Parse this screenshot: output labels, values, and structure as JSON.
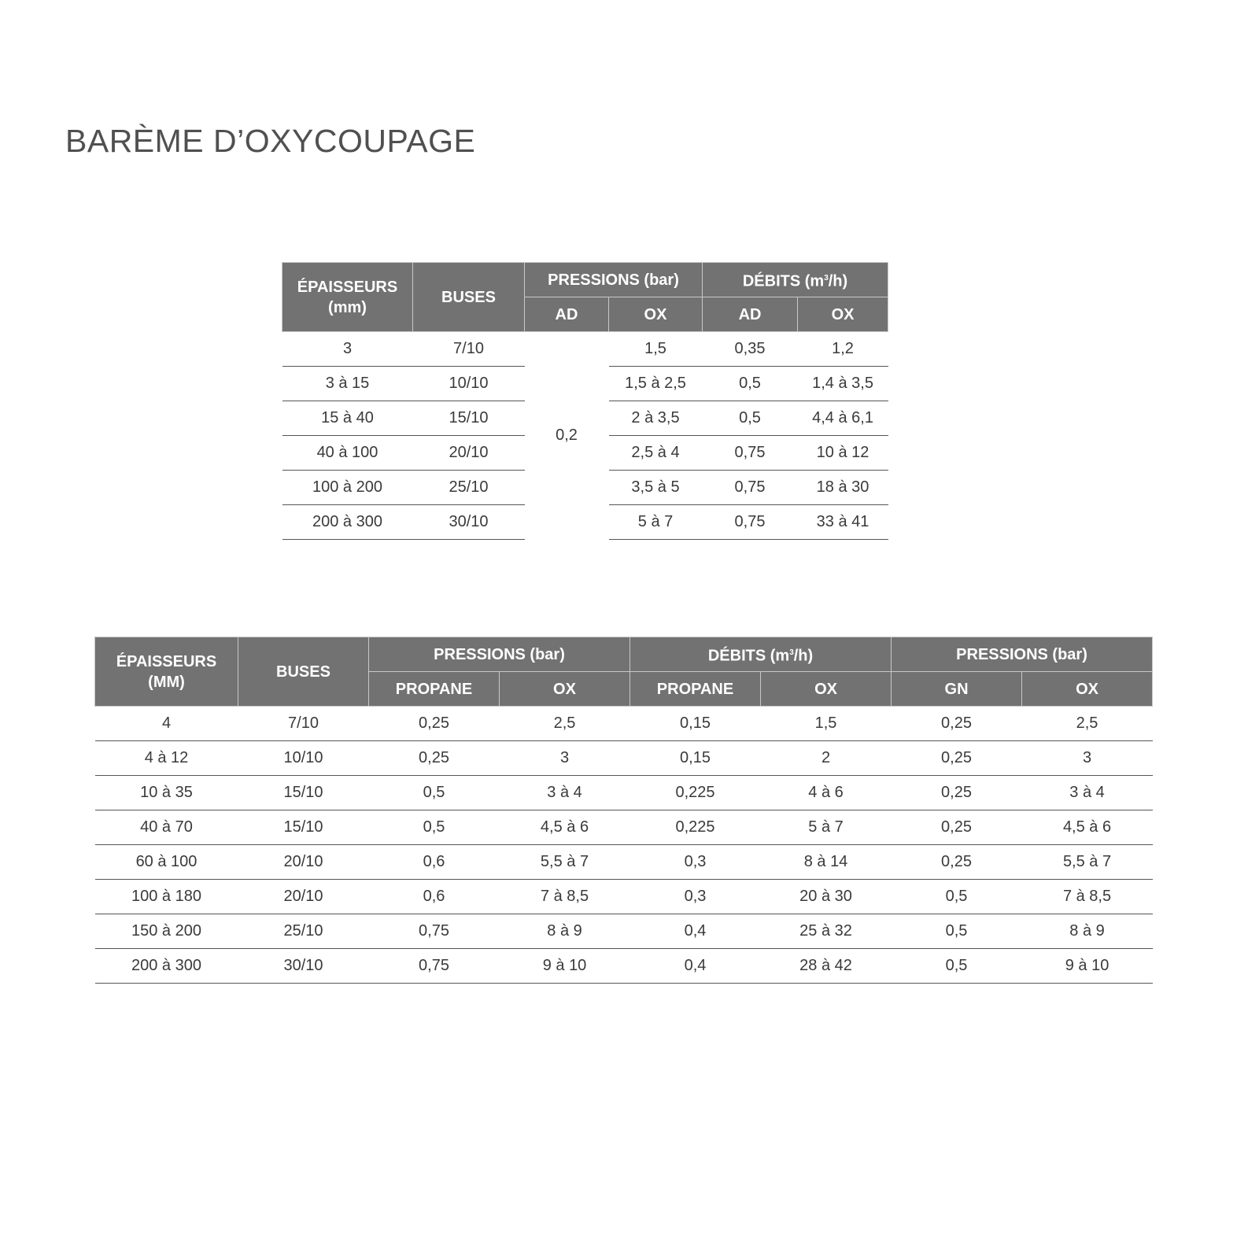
{
  "title": "BARÈME D’OXYCOUPAGE",
  "table1": {
    "headers": {
      "thickness": [
        "ÉPAISSEURS",
        "(mm)"
      ],
      "nozzles": "BUSES",
      "pressures": "PRESSIONS (bar)",
      "flows_prefix": "DÉBITS (m",
      "flows_sup": "3",
      "flows_suffix": "/h)",
      "sub": [
        "AD",
        "OX",
        "AD",
        "OX"
      ]
    },
    "ad_pressure_merged": "0,2",
    "rows": [
      [
        "3",
        "7/10",
        "1,5",
        "0,35",
        "1,2"
      ],
      [
        "3 à 15",
        "10/10",
        "1,5 à 2,5",
        "0,5",
        "1,4 à 3,5"
      ],
      [
        "15 à 40",
        "15/10",
        "2 à 3,5",
        "0,5",
        "4,4 à 6,1"
      ],
      [
        "40 à 100",
        "20/10",
        "2,5 à 4",
        "0,75",
        "10 à 12"
      ],
      [
        "100 à 200",
        "25/10",
        "3,5 à 5",
        "0,75",
        "18 à 30"
      ],
      [
        "200 à 300",
        "30/10",
        "5 à 7",
        "0,75",
        "33 à 41"
      ]
    ]
  },
  "table2": {
    "headers": {
      "thickness": [
        "ÉPAISSEURS",
        "(MM)"
      ],
      "nozzles": "BUSES",
      "pressures": "PRESSIONS (bar)",
      "flows_prefix": "DÉBITS (m",
      "flows_sup": "3",
      "flows_suffix": "/h)",
      "pressures2": "PRESSIONS (bar)",
      "sub": [
        "PROPANE",
        "OX",
        "PROPANE",
        "OX",
        "GN",
        "OX"
      ]
    },
    "rows": [
      [
        "4",
        "7/10",
        "0,25",
        "2,5",
        "0,15",
        "1,5",
        "0,25",
        "2,5"
      ],
      [
        "4 à 12",
        "10/10",
        "0,25",
        "3",
        "0,15",
        "2",
        "0,25",
        "3"
      ],
      [
        "10 à 35",
        "15/10",
        "0,5",
        "3 à 4",
        "0,225",
        "4 à 6",
        "0,25",
        "3 à 4"
      ],
      [
        "40 à 70",
        "15/10",
        "0,5",
        "4,5 à 6",
        "0,225",
        "5 à 7",
        "0,25",
        "4,5 à 6"
      ],
      [
        "60 à 100",
        "20/10",
        "0,6",
        "5,5 à 7",
        "0,3",
        "8 à 14",
        "0,25",
        "5,5 à 7"
      ],
      [
        "100 à 180",
        "20/10",
        "0,6",
        "7 à 8,5",
        "0,3",
        "20 à 30",
        "0,5",
        "7 à 8,5"
      ],
      [
        "150 à 200",
        "25/10",
        "0,75",
        "8 à 9",
        "0,4",
        "25 à 32",
        "0,5",
        "8 à 9"
      ],
      [
        "200 à 300",
        "30/10",
        "0,75",
        "9 à 10",
        "0,4",
        "28 à 42",
        "0,5",
        "9 à 10"
      ]
    ]
  }
}
